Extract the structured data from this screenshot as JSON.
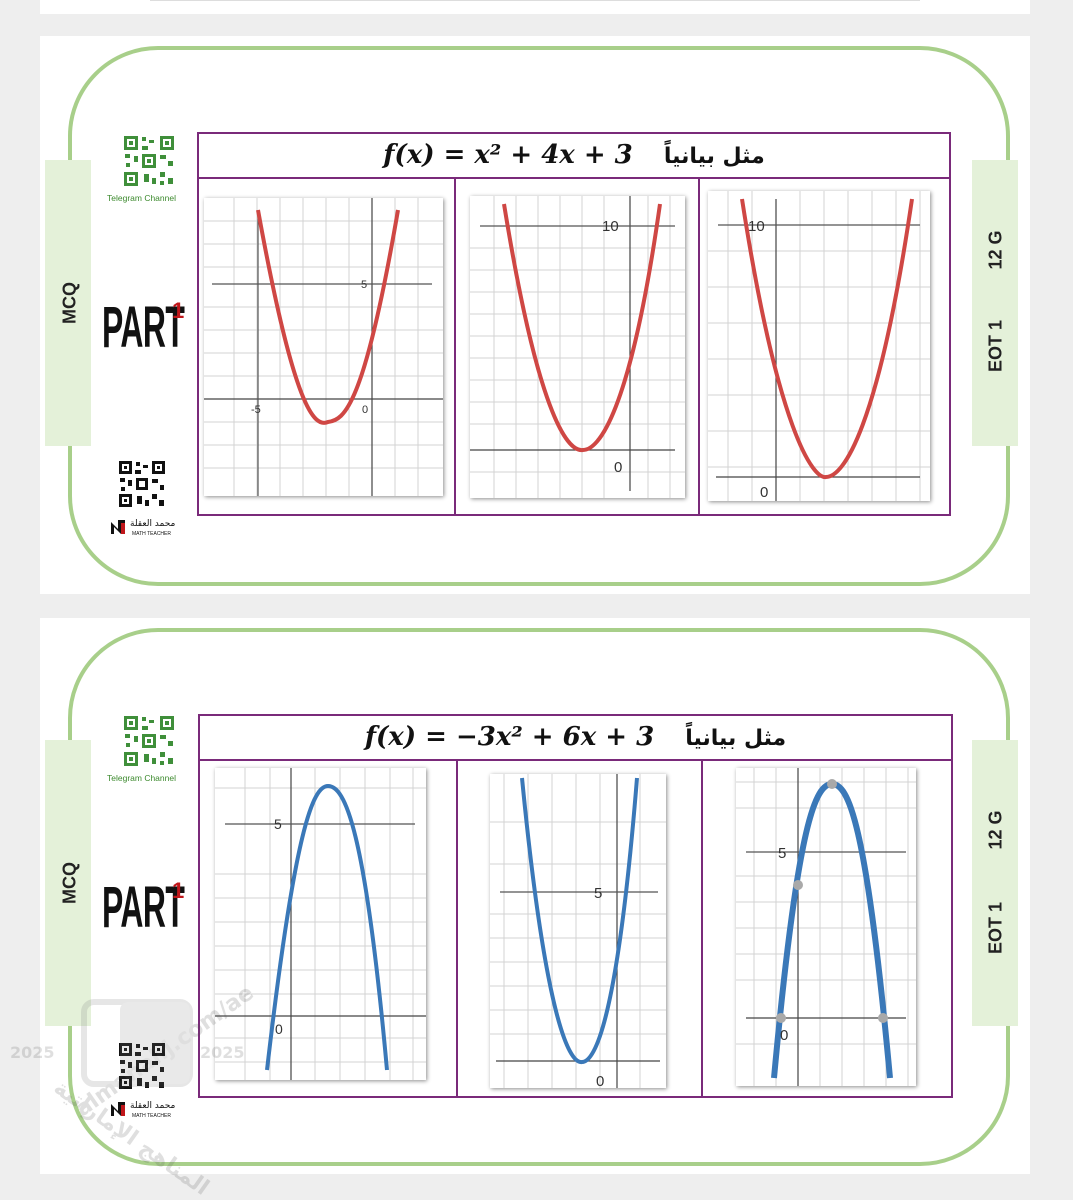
{
  "cards": [
    {
      "left_tab_label": "MCQ",
      "right_tab_label_1": "12 G",
      "right_tab_label_2": "EOT 1",
      "qr_caption": "Telegram Channel",
      "part_text": "PART",
      "part_number": "1",
      "teacher_name": "محمد العقلة",
      "teacher_subtitle": "MATH TEACHER",
      "formula": "f(x) = x² + 4x + 3",
      "instruction": "مثل بيانياً",
      "curve_color": "#cf4744",
      "graphs": [
        {
          "labels": {
            "five": "5",
            "neg_five": "-5",
            "zero": "0"
          }
        },
        {
          "labels": {
            "ten": "10",
            "zero": "0"
          }
        },
        {
          "labels": {
            "ten": "10",
            "zero": "0"
          }
        }
      ]
    },
    {
      "left_tab_label": "MCQ",
      "right_tab_label_1": "12 G",
      "right_tab_label_2": "EOT 1",
      "qr_caption": "Telegram Channel",
      "part_text": "PART",
      "part_number": "1",
      "teacher_name": "محمد العقلة",
      "teacher_subtitle": "MATH TEACHER",
      "formula": "f(x) = −3x² + 6x + 3",
      "instruction": "مثل بيانياً",
      "curve_color": "#3a78b8",
      "graphs": [
        {
          "labels": {
            "five": "5",
            "zero": "0"
          }
        },
        {
          "labels": {
            "five": "5",
            "zero": "0"
          }
        },
        {
          "labels": {
            "five": "5",
            "zero": "0"
          }
        }
      ]
    }
  ],
  "watermark": {
    "text": "almanahj.com/ae",
    "year": "2025",
    "arabic": "موقع المناهج الإماراتية"
  }
}
